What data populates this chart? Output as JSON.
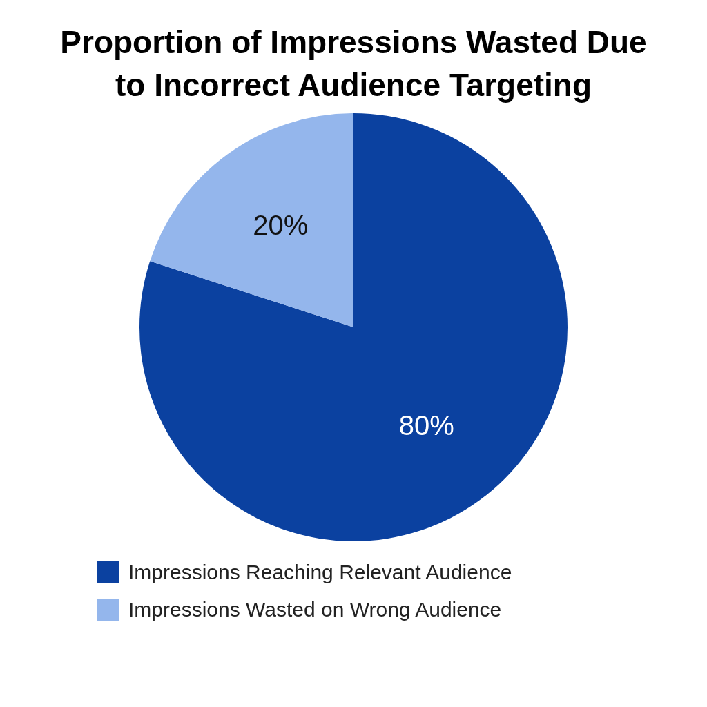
{
  "chart_data": {
    "type": "pie",
    "title": "Proportion of Impressions Wasted Due to Incorrect Audience Targeting",
    "categories": [
      "Impressions Reaching Relevant Audience",
      "Impressions Wasted on Wrong Audience"
    ],
    "values": [
      80,
      20
    ],
    "colors": [
      "#0b41a0",
      "#94b6ec"
    ],
    "value_labels": [
      "80%",
      "20%"
    ],
    "legend": "bottom"
  }
}
